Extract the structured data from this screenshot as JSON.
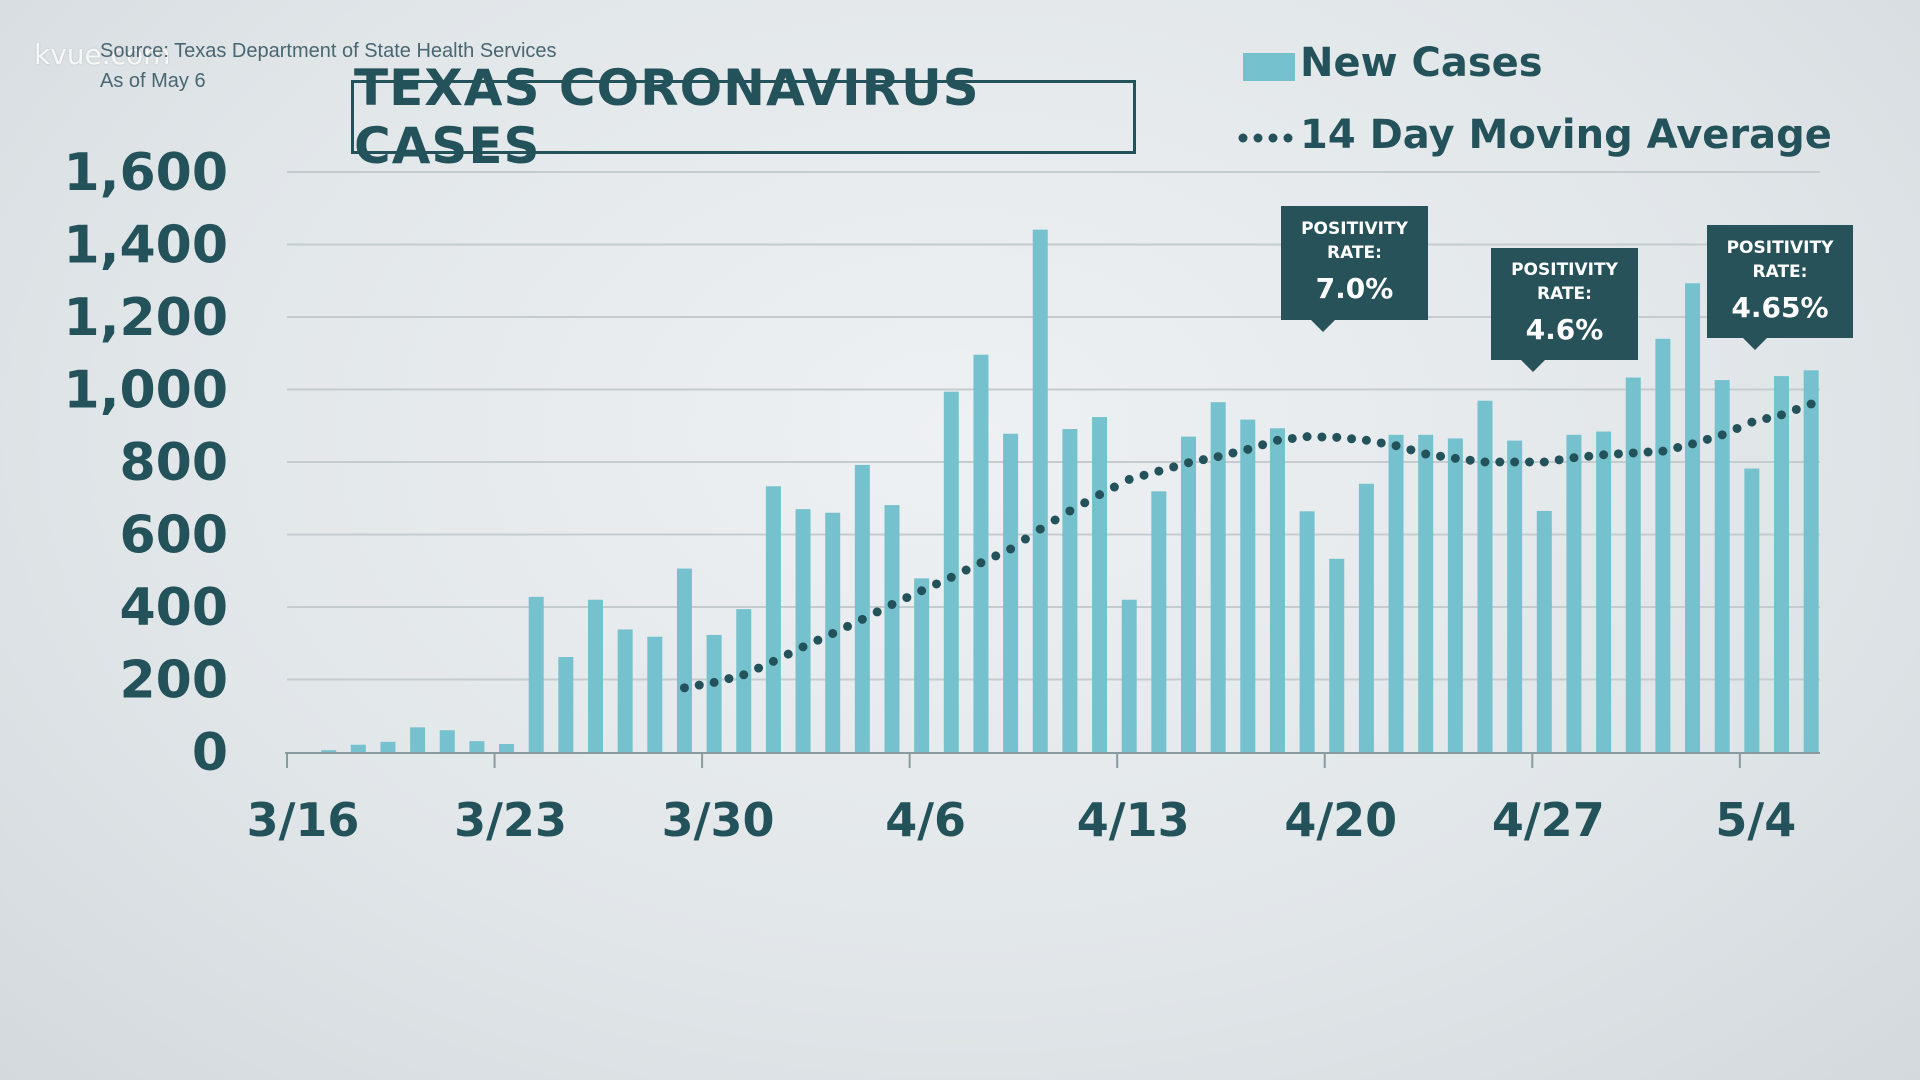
{
  "watermark": "kvue.com",
  "source": "Source: Texas Department of State Health Services",
  "as_of": "As of May 6",
  "colors": {
    "bar": "#75c1cd",
    "dark": "#24525a",
    "grid": "#c4ccd0"
  },
  "callouts": [
    {
      "label_line1": "POSITIVITY",
      "label_line2": "RATE:",
      "value": "7.0%"
    },
    {
      "label_line1": "POSITIVITY",
      "label_line2": "RATE:",
      "value": "4.6%"
    },
    {
      "label_line1": "POSITIVITY",
      "label_line2": "RATE:",
      "value": "4.65%"
    }
  ],
  "chart_data": {
    "type": "bar",
    "title": "TEXAS CORONAVIRUS CASES",
    "legend": {
      "placement": "top-right",
      "entries": [
        "New Cases",
        "14 Day Moving Average"
      ]
    },
    "ylim": [
      0,
      1600
    ],
    "y_ticks": [
      "0",
      "200",
      "400",
      "600",
      "800",
      "1,000",
      "1,200",
      "1,400",
      "1,600"
    ],
    "y_tick_values": [
      0,
      200,
      400,
      600,
      800,
      1000,
      1200,
      1400,
      1600
    ],
    "x_ticks": [
      "3/16",
      "3/23",
      "3/30",
      "4/6",
      "4/13",
      "4/20",
      "4/27",
      "5/4"
    ],
    "grid": true,
    "categories": [
      "3/16",
      "3/17",
      "3/18",
      "3/19",
      "3/20",
      "3/21",
      "3/22",
      "3/23",
      "3/24",
      "3/25",
      "3/26",
      "3/27",
      "3/28",
      "3/29",
      "3/30",
      "3/31",
      "4/1",
      "4/2",
      "4/3",
      "4/4",
      "4/5",
      "4/6",
      "4/7",
      "4/8",
      "4/9",
      "4/10",
      "4/11",
      "4/12",
      "4/13",
      "4/14",
      "4/15",
      "4/16",
      "4/17",
      "4/18",
      "4/19",
      "4/20",
      "4/21",
      "4/22",
      "4/23",
      "4/24",
      "4/25",
      "4/26",
      "4/27",
      "4/28",
      "4/29",
      "4/30",
      "5/1",
      "5/2",
      "5/3",
      "5/4",
      "5/5",
      "5/6"
    ],
    "series": [
      {
        "name": "New Cases",
        "type": "bar",
        "values": [
          0,
          5,
          20,
          28,
          68,
          60,
          30,
          22,
          428,
          262,
          420,
          338,
          318,
          506,
          323,
          394,
          733,
          670,
          660,
          792,
          681,
          479,
          994,
          1096,
          878,
          1441,
          891,
          924,
          420,
          719,
          870,
          965,
          917,
          893,
          664,
          533,
          740,
          875,
          875,
          865,
          969,
          859,
          665,
          875,
          884,
          1033,
          1140,
          1293,
          1026,
          782,
          1037,
          1053
        ]
      },
      {
        "name": "14 Day Moving Average",
        "type": "line",
        "x": [
          "3/29",
          "3/30",
          "3/31",
          "4/1",
          "4/2",
          "4/3",
          "4/4",
          "4/5",
          "4/6",
          "4/7",
          "4/8",
          "4/9",
          "4/10",
          "4/11",
          "4/12",
          "4/13",
          "4/14",
          "4/15",
          "4/16",
          "4/17",
          "4/18",
          "4/19",
          "4/20",
          "4/21",
          "4/22",
          "4/23",
          "4/24",
          "4/25",
          "4/26",
          "4/27",
          "4/28",
          "4/29",
          "4/30",
          "5/1",
          "5/2",
          "5/3",
          "5/4",
          "5/5",
          "5/6"
        ],
        "values": [
          177,
          192,
          213,
          250,
          290,
          327,
          366,
          407,
          445,
          482,
          522,
          560,
          615,
          665,
          710,
          752,
          775,
          798,
          815,
          835,
          860,
          870,
          868,
          860,
          845,
          822,
          810,
          800,
          800,
          800,
          812,
          820,
          825,
          830,
          850,
          875,
          910,
          930,
          960
        ]
      }
    ]
  }
}
